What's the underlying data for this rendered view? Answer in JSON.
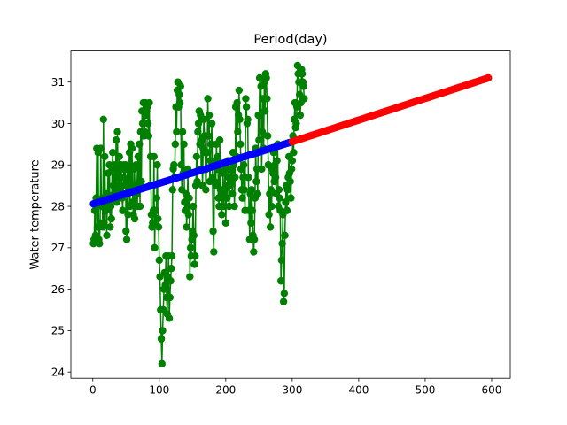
{
  "chart_data": {
    "type": "line",
    "title": "Period(day)",
    "xlabel": "",
    "ylabel": "Water temperature",
    "xlim": [
      -33,
      628
    ],
    "ylim": [
      23.85,
      31.75
    ],
    "xticks": [
      0,
      100,
      200,
      300,
      400,
      500,
      600
    ],
    "yticks": [
      24,
      25,
      26,
      27,
      28,
      29,
      30,
      31
    ],
    "grid": false,
    "legend": "none",
    "series": [
      {
        "role": "observed",
        "color": "#008000",
        "marker": "circle",
        "line": true,
        "x_start": 1,
        "x_step": 1,
        "values": [
          27.1,
          27.2,
          27.9,
          27.3,
          28.2,
          29.4,
          27.5,
          29.3,
          27.2,
          27.1,
          27.6,
          29.4,
          28.0,
          28.2,
          27.5,
          30.1,
          27.6,
          29.2,
          28.0,
          27.9,
          27.3,
          28.3,
          28.8,
          28.1,
          29.0,
          27.5,
          28.0,
          27.7,
          28.9,
          29.3,
          28.5,
          28.3,
          29.0,
          28.4,
          29.6,
          28.1,
          29.8,
          28.7,
          28.5,
          29.2,
          28.4,
          29.0,
          28.9,
          28.2,
          27.9,
          28.7,
          29.0,
          28.5,
          29.0,
          27.4,
          27.2,
          28.9,
          27.8,
          28.6,
          29.3,
          28.0,
          29.5,
          28.4,
          29.4,
          28.1,
          27.8,
          28.9,
          27.7,
          28.4,
          29.0,
          28.3,
          28.0,
          29.2,
          28.5,
          29.5,
          28.0,
          29.8,
          28.6,
          30.3,
          30.0,
          30.5,
          29.7,
          29.8,
          30.5,
          30.2,
          30.3,
          30.4,
          30.0,
          29.7,
          30.5,
          28.5,
          29.2,
          27.8,
          27.5,
          27.6,
          27.9,
          29.2,
          27.0,
          27.9,
          27.6,
          28.2,
          29.0,
          27.7,
          27.5,
          26.7,
          26.3,
          25.5,
          24.8,
          24.2,
          25.0,
          25.5,
          26.0,
          26.4,
          26.1,
          26.8,
          25.8,
          25.4,
          26.3,
          26.8,
          25.3,
          25.8,
          26.2,
          26.5,
          26.8,
          28.4,
          28.9,
          29.0,
          28.7,
          29.5,
          30.4,
          29.8,
          30.8,
          31.0,
          30.4,
          30.7,
          30.5,
          30.9,
          29.0,
          28.4,
          29.8,
          28.8,
          29.5,
          28.1,
          27.9,
          28.3,
          27.5,
          27.9,
          28.9,
          27.8,
          28.2,
          26.3,
          27.0,
          26.8,
          27.2,
          27.4,
          28.0,
          27.3,
          26.6,
          26.8,
          28.5,
          29.2,
          28.6,
          29.8,
          30.0,
          30.3,
          29.5,
          30.2,
          28.9,
          29.6,
          28.5,
          29.4,
          30.1,
          29.7,
          29.3,
          28.4,
          28.9,
          29.3,
          30.6,
          29.7,
          30.2,
          28.6,
          29.1,
          29.5,
          30.0,
          28.7,
          27.4,
          26.9,
          28.6,
          29.1,
          28.5,
          29.5,
          28.9,
          29.2,
          28.2,
          28.0,
          29.6,
          28.4,
          28.3,
          27.8,
          28.2,
          28.8,
          28.0,
          28.4,
          28.9,
          27.6,
          28.5,
          28.2,
          29.1,
          28.7,
          28.0,
          28.5,
          28.9,
          29.1,
          28.6,
          28.3,
          29.3,
          29.0,
          28.0,
          28.7,
          30.4,
          29.2,
          30.5,
          29.8,
          30.2,
          30.8,
          30.1,
          29.5,
          28.9,
          28.4,
          28.2,
          28.7,
          29.0,
          28.4,
          27.9,
          30.6,
          30.4,
          30.0,
          30.1,
          28.7,
          27.9,
          27.2,
          28.3,
          27.6,
          28.4,
          27.9,
          27.3,
          26.9,
          27.2,
          28.2,
          29.4,
          28.6,
          28.9,
          28.3,
          30.2,
          29.6,
          31.1,
          30.2,
          30.9,
          28.9,
          29.8,
          30.6,
          29.4,
          31.0,
          30.3,
          31.2,
          31.1,
          30.6,
          29.7,
          29.0,
          27.8,
          28.3,
          27.5,
          28.4,
          28.0,
          28.9,
          28.8,
          29.3,
          28.6,
          29.0,
          28.7,
          28.3,
          29.1,
          29.5,
          28.0,
          28.4,
          28.2,
          27.9,
          26.2,
          26.7,
          27.1,
          27.8,
          25.7,
          25.9,
          27.3,
          28.1,
          28.5,
          27.9,
          28.4,
          28.7,
          29.2,
          28.8,
          28.6,
          28.2,
          28.9,
          29.1,
          29.7,
          29.3,
          30.1,
          30.5,
          29.9,
          30.0,
          30.4,
          31.4,
          31.2,
          31.0,
          30.7,
          30.2,
          30.5,
          31.3,
          31.2,
          31.0,
          30.9,
          30.6
        ]
      },
      {
        "role": "fitted",
        "color": "#0000ff",
        "marker": "circle",
        "line": false,
        "x": [
          1,
          300
        ],
        "y": [
          28.06,
          29.56
        ],
        "x_step": 3
      },
      {
        "role": "forecast",
        "color": "#ff0000",
        "marker": "circle",
        "line": false,
        "x": [
          300,
          595
        ],
        "y": [
          29.56,
          31.1
        ],
        "x_step": 3
      }
    ]
  }
}
